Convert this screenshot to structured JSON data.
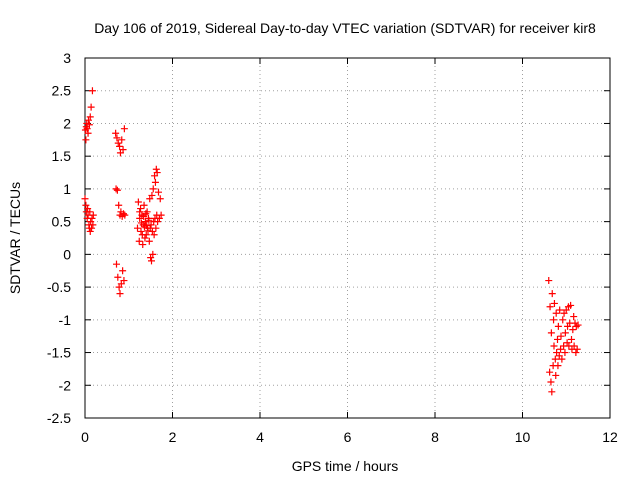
{
  "chart_data": {
    "type": "scatter",
    "title": "Day 106 of 2019, Sidereal Day-to-day VTEC variation (SDTVAR) for receiver kir8",
    "xlabel": "GPS time / hours",
    "ylabel": "SDTVAR / TECUs",
    "xlim": [
      0,
      12
    ],
    "ylim": [
      -2.5,
      3
    ],
    "grid": true,
    "marker": "+",
    "marker_color": "#ff0000",
    "x_ticks": [
      0,
      2,
      4,
      6,
      8,
      10,
      12
    ],
    "y_ticks": [
      -2.5,
      -2,
      -1.5,
      -1,
      -0.5,
      0,
      0.5,
      1,
      1.5,
      2,
      2.5,
      3
    ],
    "series": [
      {
        "name": "SDTVAR",
        "points": [
          [
            0.0,
            0.85
          ],
          [
            0.01,
            1.9
          ],
          [
            0.02,
            1.75
          ],
          [
            0.02,
            0.75
          ],
          [
            0.03,
            1.95
          ],
          [
            0.03,
            0.65
          ],
          [
            0.04,
            2.0
          ],
          [
            0.05,
            0.55
          ],
          [
            0.05,
            1.92
          ],
          [
            0.06,
            0.7
          ],
          [
            0.07,
            1.85
          ],
          [
            0.07,
            0.6
          ],
          [
            0.08,
            2.05
          ],
          [
            0.09,
            0.45
          ],
          [
            0.1,
            1.98
          ],
          [
            0.1,
            0.4
          ],
          [
            0.11,
            0.65
          ],
          [
            0.12,
            2.1
          ],
          [
            0.12,
            0.35
          ],
          [
            0.13,
            0.5
          ],
          [
            0.14,
            2.25
          ],
          [
            0.15,
            0.4
          ],
          [
            0.16,
            0.55
          ],
          [
            0.17,
            2.5
          ],
          [
            0.18,
            0.45
          ],
          [
            0.19,
            0.6
          ],
          [
            0.7,
            1.85
          ],
          [
            0.71,
            1.0
          ],
          [
            0.72,
            -0.15
          ],
          [
            0.73,
            1.78
          ],
          [
            0.74,
            0.98
          ],
          [
            0.75,
            -0.35
          ],
          [
            0.76,
            1.7
          ],
          [
            0.77,
            0.75
          ],
          [
            0.78,
            -0.5
          ],
          [
            0.79,
            1.65
          ],
          [
            0.8,
            0.6
          ],
          [
            0.8,
            -0.6
          ],
          [
            0.81,
            1.55
          ],
          [
            0.82,
            0.65
          ],
          [
            0.83,
            -0.45
          ],
          [
            0.84,
            1.75
          ],
          [
            0.85,
            0.58
          ],
          [
            0.86,
            -0.25
          ],
          [
            0.87,
            1.6
          ],
          [
            0.88,
            0.62
          ],
          [
            0.89,
            -0.4
          ],
          [
            0.9,
            1.92
          ],
          [
            0.91,
            0.6
          ],
          [
            1.2,
            0.4
          ],
          [
            1.22,
            0.8
          ],
          [
            1.24,
            0.2
          ],
          [
            1.25,
            0.55
          ],
          [
            1.27,
            0.7
          ],
          [
            1.28,
            0.35
          ],
          [
            1.3,
            0.6
          ],
          [
            1.32,
            0.15
          ],
          [
            1.33,
            0.45
          ],
          [
            1.35,
            0.75
          ],
          [
            1.37,
            0.25
          ],
          [
            1.38,
            0.5
          ],
          [
            1.4,
            0.3
          ],
          [
            1.42,
            0.65
          ],
          [
            1.43,
            0.4
          ],
          [
            1.45,
            0.55
          ],
          [
            1.47,
            0.2
          ],
          [
            1.48,
            0.85
          ],
          [
            1.5,
            -0.05
          ],
          [
            1.51,
            0.45
          ],
          [
            1.52,
            -0.1
          ],
          [
            1.53,
            0.9
          ],
          [
            1.54,
            0.35
          ],
          [
            1.55,
            0.0
          ],
          [
            1.56,
            1.0
          ],
          [
            1.57,
            0.5
          ],
          [
            1.58,
            0.3
          ],
          [
            1.59,
            1.2
          ],
          [
            1.6,
            0.55
          ],
          [
            1.61,
            1.1
          ],
          [
            1.62,
            0.4
          ],
          [
            1.63,
            1.3
          ],
          [
            1.64,
            0.6
          ],
          [
            1.65,
            1.25
          ],
          [
            1.66,
            0.5
          ],
          [
            1.68,
            0.95
          ],
          [
            1.7,
            0.55
          ],
          [
            1.72,
            0.85
          ],
          [
            1.74,
            0.6
          ],
          [
            1.25,
            0.65
          ],
          [
            1.29,
            0.48
          ],
          [
            1.31,
            0.3
          ],
          [
            1.34,
            0.58
          ],
          [
            1.36,
            0.42
          ],
          [
            1.39,
            0.62
          ],
          [
            1.41,
            0.44
          ],
          [
            1.44,
            0.36
          ],
          [
            1.46,
            0.52
          ],
          [
            1.49,
            0.4
          ],
          [
            10.6,
            -0.4
          ],
          [
            10.62,
            -1.8
          ],
          [
            10.63,
            -0.8
          ],
          [
            10.65,
            -1.95
          ],
          [
            10.66,
            -1.2
          ],
          [
            10.67,
            -2.1
          ],
          [
            10.68,
            -0.6
          ],
          [
            10.7,
            -1.7
          ],
          [
            10.71,
            -1.0
          ],
          [
            10.72,
            -1.4
          ],
          [
            10.73,
            -0.75
          ],
          [
            10.75,
            -1.6
          ],
          [
            10.76,
            -1.85
          ],
          [
            10.77,
            -0.9
          ],
          [
            10.78,
            -1.5
          ],
          [
            10.8,
            -1.3
          ],
          [
            10.81,
            -1.7
          ],
          [
            10.82,
            -1.1
          ],
          [
            10.84,
            -1.55
          ],
          [
            10.85,
            -0.85
          ],
          [
            10.87,
            -1.45
          ],
          [
            10.88,
            -1.25
          ],
          [
            10.9,
            -1.6
          ],
          [
            10.92,
            -1.0
          ],
          [
            10.94,
            -1.4
          ],
          [
            10.95,
            -0.9
          ],
          [
            10.97,
            -1.5
          ],
          [
            10.98,
            -1.2
          ],
          [
            11.0,
            -0.85
          ],
          [
            11.02,
            -1.35
          ],
          [
            11.03,
            -1.1
          ],
          [
            11.05,
            -0.8
          ],
          [
            11.06,
            -1.4
          ],
          [
            11.08,
            -1.05
          ],
          [
            11.1,
            -0.78
          ],
          [
            11.12,
            -1.3
          ],
          [
            11.13,
            -1.45
          ],
          [
            11.15,
            -1.15
          ],
          [
            11.17,
            -0.95
          ],
          [
            11.18,
            -1.4
          ],
          [
            11.2,
            -1.05
          ],
          [
            11.22,
            -1.5
          ],
          [
            11.23,
            -1.1
          ],
          [
            11.25,
            -1.45
          ],
          [
            11.27,
            -1.08
          ]
        ]
      }
    ]
  }
}
